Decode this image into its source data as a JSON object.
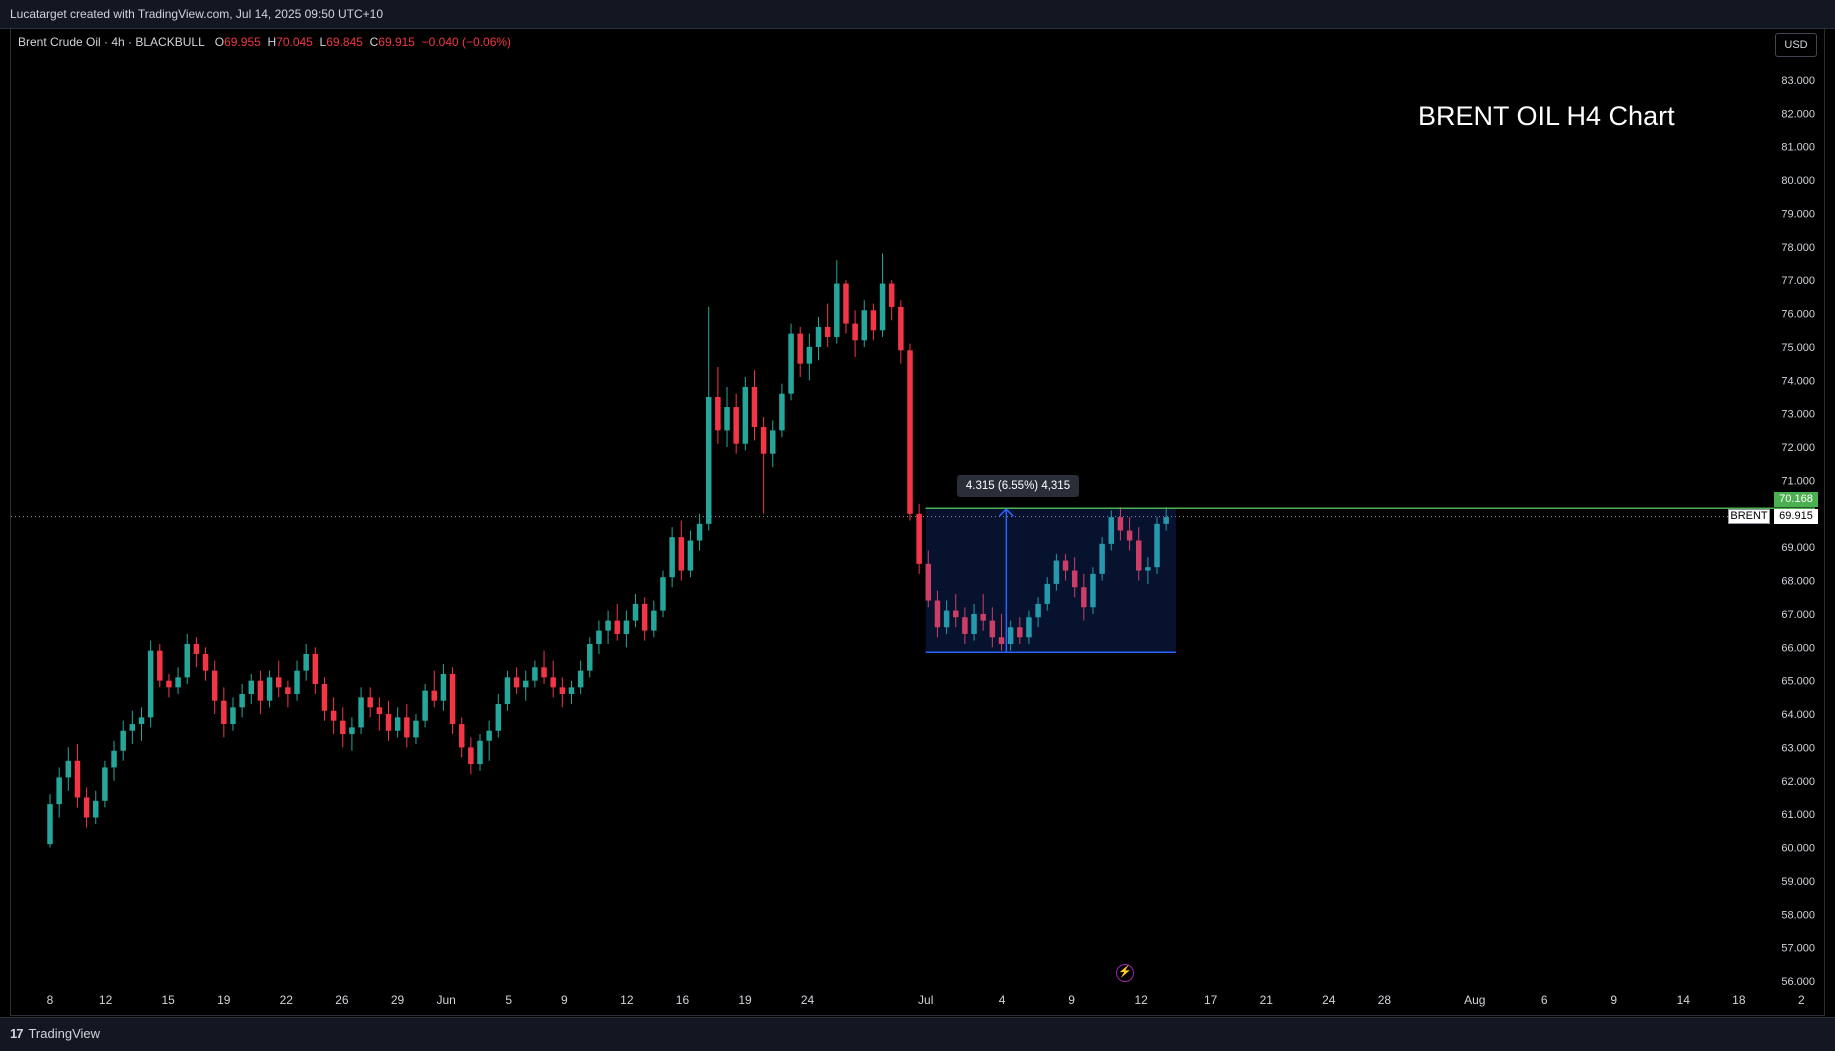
{
  "header": {
    "credit": "Lucatarget created with TradingView.com, Jul 14, 2025 09:50 UTC+10"
  },
  "legend": {
    "symbol": "Brent Crude Oil · 4h · BLACKBULL",
    "open_label": "O",
    "open": "69.955",
    "high_label": "H",
    "high": "70.045",
    "low_label": "L",
    "low": "69.845",
    "close_label": "C",
    "close": "69.915",
    "change": "−0.040 (−0.06%)"
  },
  "currency_button": "USD",
  "annotation_title": "BRENT OIL H4 Chart",
  "measure_label": "4.315 (6.55%) 4,315",
  "price_tags": {
    "resistance": "70.168",
    "symbol": "BRENT",
    "last": "69.915"
  },
  "footer": {
    "brand": "TradingView",
    "logo_mark": "17"
  },
  "colors": {
    "up": "#26a69a",
    "down": "#f23645",
    "measure": "#2962ff",
    "resistance": "#4caf50"
  },
  "chart_data": {
    "type": "candlestick",
    "y_ticks": [
      "83.000",
      "82.000",
      "81.000",
      "80.000",
      "79.000",
      "78.000",
      "77.000",
      "76.000",
      "75.000",
      "74.000",
      "73.000",
      "72.000",
      "71.000",
      "70.000",
      "69.000",
      "68.000",
      "67.000",
      "66.000",
      "65.000",
      "64.000",
      "63.000",
      "62.000",
      "61.000",
      "60.000",
      "59.000",
      "58.000",
      "57.000",
      "56.000"
    ],
    "ylim": [
      55.5,
      83.5
    ],
    "x_ticks": [
      "8",
      "12",
      "15",
      "19",
      "22",
      "26",
      "29",
      "Jun",
      "5",
      "9",
      "12",
      "16",
      "19",
      "24",
      "Jul",
      "4",
      "9",
      "12",
      "17",
      "21",
      "24",
      "28",
      "Aug",
      "6",
      "9",
      "14",
      "18",
      "2"
    ],
    "x_tick_positions": [
      0.0,
      4.0,
      8.5,
      12.5,
      17.0,
      21.0,
      25.0,
      28.5,
      33.0,
      37.0,
      41.5,
      45.5,
      50.0,
      54.5,
      63.0,
      68.5,
      73.5,
      78.5,
      83.5,
      87.5,
      92.0,
      96.0,
      102.5,
      107.5,
      112.5,
      117.5,
      121.5,
      126.0
    ],
    "x_units": "trading days after the first date label (8)",
    "series": [
      {
        "values": [
          {
            "o": 60.1,
            "h": 61.6,
            "l": 60.0,
            "c": 61.3
          },
          {
            "o": 61.3,
            "h": 62.4,
            "l": 60.9,
            "c": 62.1
          },
          {
            "o": 62.1,
            "h": 63.0,
            "l": 61.7,
            "c": 62.6
          },
          {
            "o": 62.6,
            "h": 63.1,
            "l": 61.2,
            "c": 61.5
          },
          {
            "o": 61.5,
            "h": 61.8,
            "l": 60.6,
            "c": 60.9
          },
          {
            "o": 60.9,
            "h": 61.7,
            "l": 60.7,
            "c": 61.4
          },
          {
            "o": 61.4,
            "h": 62.6,
            "l": 61.2,
            "c": 62.4
          },
          {
            "o": 62.4,
            "h": 63.2,
            "l": 62.0,
            "c": 62.9
          },
          {
            "o": 62.9,
            "h": 63.8,
            "l": 62.6,
            "c": 63.5
          },
          {
            "o": 63.5,
            "h": 64.1,
            "l": 63.1,
            "c": 63.7
          },
          {
            "o": 63.7,
            "h": 64.2,
            "l": 63.2,
            "c": 63.9
          },
          {
            "o": 63.9,
            "h": 66.2,
            "l": 63.6,
            "c": 65.9
          },
          {
            "o": 65.9,
            "h": 66.1,
            "l": 64.8,
            "c": 65.0
          },
          {
            "o": 65.0,
            "h": 65.2,
            "l": 64.5,
            "c": 64.8
          },
          {
            "o": 64.8,
            "h": 65.4,
            "l": 64.6,
            "c": 65.1
          },
          {
            "o": 65.1,
            "h": 66.4,
            "l": 64.9,
            "c": 66.1
          },
          {
            "o": 66.1,
            "h": 66.3,
            "l": 65.4,
            "c": 65.8
          },
          {
            "o": 65.8,
            "h": 66.0,
            "l": 65.0,
            "c": 65.3
          },
          {
            "o": 65.3,
            "h": 65.6,
            "l": 64.0,
            "c": 64.4
          },
          {
            "o": 64.4,
            "h": 64.8,
            "l": 63.3,
            "c": 63.7
          },
          {
            "o": 63.7,
            "h": 64.5,
            "l": 63.5,
            "c": 64.2
          },
          {
            "o": 64.2,
            "h": 64.9,
            "l": 63.9,
            "c": 64.6
          },
          {
            "o": 64.6,
            "h": 65.2,
            "l": 64.3,
            "c": 65.0
          },
          {
            "o": 65.0,
            "h": 65.3,
            "l": 64.0,
            "c": 64.4
          },
          {
            "o": 64.4,
            "h": 65.3,
            "l": 64.2,
            "c": 65.1
          },
          {
            "o": 65.1,
            "h": 65.6,
            "l": 64.5,
            "c": 64.8
          },
          {
            "o": 64.8,
            "h": 65.0,
            "l": 64.2,
            "c": 64.6
          },
          {
            "o": 64.6,
            "h": 65.6,
            "l": 64.4,
            "c": 65.3
          },
          {
            "o": 65.3,
            "h": 66.1,
            "l": 65.0,
            "c": 65.8
          },
          {
            "o": 65.8,
            "h": 66.0,
            "l": 64.6,
            "c": 64.9
          },
          {
            "o": 64.9,
            "h": 65.1,
            "l": 63.8,
            "c": 64.1
          },
          {
            "o": 64.1,
            "h": 64.5,
            "l": 63.4,
            "c": 63.8
          },
          {
            "o": 63.8,
            "h": 64.2,
            "l": 63.0,
            "c": 63.4
          },
          {
            "o": 63.4,
            "h": 63.9,
            "l": 62.9,
            "c": 63.6
          },
          {
            "o": 63.6,
            "h": 64.8,
            "l": 63.4,
            "c": 64.5
          },
          {
            "o": 64.5,
            "h": 64.8,
            "l": 63.9,
            "c": 64.2
          },
          {
            "o": 64.2,
            "h": 64.5,
            "l": 63.5,
            "c": 64.0
          },
          {
            "o": 64.0,
            "h": 64.4,
            "l": 63.2,
            "c": 63.5
          },
          {
            "o": 63.5,
            "h": 64.2,
            "l": 63.3,
            "c": 63.9
          },
          {
            "o": 63.9,
            "h": 64.3,
            "l": 63.0,
            "c": 63.3
          },
          {
            "o": 63.3,
            "h": 64.0,
            "l": 63.1,
            "c": 63.8
          },
          {
            "o": 63.8,
            "h": 64.9,
            "l": 63.6,
            "c": 64.7
          },
          {
            "o": 64.7,
            "h": 65.3,
            "l": 64.2,
            "c": 64.4
          },
          {
            "o": 64.4,
            "h": 65.5,
            "l": 64.1,
            "c": 65.2
          },
          {
            "o": 65.2,
            "h": 65.4,
            "l": 63.4,
            "c": 63.7
          },
          {
            "o": 63.7,
            "h": 63.9,
            "l": 62.7,
            "c": 63.0
          },
          {
            "o": 63.0,
            "h": 63.3,
            "l": 62.2,
            "c": 62.5
          },
          {
            "o": 62.5,
            "h": 63.4,
            "l": 62.3,
            "c": 63.2
          },
          {
            "o": 63.2,
            "h": 63.8,
            "l": 62.6,
            "c": 63.5
          },
          {
            "o": 63.5,
            "h": 64.6,
            "l": 63.3,
            "c": 64.3
          },
          {
            "o": 64.3,
            "h": 65.3,
            "l": 64.1,
            "c": 65.1
          },
          {
            "o": 65.1,
            "h": 65.4,
            "l": 64.6,
            "c": 64.8
          },
          {
            "o": 64.8,
            "h": 65.3,
            "l": 64.4,
            "c": 65.0
          },
          {
            "o": 65.0,
            "h": 65.6,
            "l": 64.8,
            "c": 65.4
          },
          {
            "o": 65.4,
            "h": 65.9,
            "l": 64.9,
            "c": 65.1
          },
          {
            "o": 65.1,
            "h": 65.6,
            "l": 64.5,
            "c": 64.8
          },
          {
            "o": 64.8,
            "h": 65.1,
            "l": 64.2,
            "c": 64.6
          },
          {
            "o": 64.6,
            "h": 65.0,
            "l": 64.3,
            "c": 64.8
          },
          {
            "o": 64.8,
            "h": 65.6,
            "l": 64.6,
            "c": 65.3
          },
          {
            "o": 65.3,
            "h": 66.3,
            "l": 65.1,
            "c": 66.1
          },
          {
            "o": 66.1,
            "h": 66.8,
            "l": 65.8,
            "c": 66.5
          },
          {
            "o": 66.5,
            "h": 67.1,
            "l": 66.1,
            "c": 66.8
          },
          {
            "o": 66.8,
            "h": 67.3,
            "l": 66.2,
            "c": 66.4
          },
          {
            "o": 66.4,
            "h": 67.1,
            "l": 66.0,
            "c": 66.8
          },
          {
            "o": 66.8,
            "h": 67.6,
            "l": 66.6,
            "c": 67.3
          },
          {
            "o": 67.3,
            "h": 67.5,
            "l": 66.2,
            "c": 66.5
          },
          {
            "o": 66.5,
            "h": 67.4,
            "l": 66.3,
            "c": 67.1
          },
          {
            "o": 67.1,
            "h": 68.3,
            "l": 66.9,
            "c": 68.1
          },
          {
            "o": 68.1,
            "h": 69.6,
            "l": 67.8,
            "c": 69.3
          },
          {
            "o": 69.3,
            "h": 69.8,
            "l": 68.0,
            "c": 68.3
          },
          {
            "o": 68.3,
            "h": 69.5,
            "l": 68.1,
            "c": 69.2
          },
          {
            "o": 69.2,
            "h": 70.0,
            "l": 68.9,
            "c": 69.7
          },
          {
            "o": 69.7,
            "h": 76.2,
            "l": 69.5,
            "c": 73.5
          },
          {
            "o": 73.5,
            "h": 74.4,
            "l": 72.1,
            "c": 72.5
          },
          {
            "o": 72.5,
            "h": 73.8,
            "l": 72.0,
            "c": 73.2
          },
          {
            "o": 73.2,
            "h": 73.6,
            "l": 71.8,
            "c": 72.1
          },
          {
            "o": 72.1,
            "h": 74.1,
            "l": 71.9,
            "c": 73.8
          },
          {
            "o": 73.8,
            "h": 74.3,
            "l": 72.2,
            "c": 72.6
          },
          {
            "o": 72.6,
            "h": 72.9,
            "l": 70.0,
            "c": 71.8
          },
          {
            "o": 71.8,
            "h": 72.8,
            "l": 71.4,
            "c": 72.5
          },
          {
            "o": 72.5,
            "h": 73.9,
            "l": 72.3,
            "c": 73.6
          },
          {
            "o": 73.6,
            "h": 75.7,
            "l": 73.4,
            "c": 75.4
          },
          {
            "o": 75.4,
            "h": 75.6,
            "l": 74.1,
            "c": 74.5
          },
          {
            "o": 74.5,
            "h": 75.4,
            "l": 74.0,
            "c": 75.0
          },
          {
            "o": 75.0,
            "h": 75.9,
            "l": 74.6,
            "c": 75.6
          },
          {
            "o": 75.6,
            "h": 76.3,
            "l": 75.0,
            "c": 75.3
          },
          {
            "o": 75.3,
            "h": 77.6,
            "l": 75.1,
            "c": 76.9
          },
          {
            "o": 76.9,
            "h": 77.0,
            "l": 75.4,
            "c": 75.7
          },
          {
            "o": 75.7,
            "h": 76.1,
            "l": 74.7,
            "c": 75.2
          },
          {
            "o": 75.2,
            "h": 76.4,
            "l": 75.0,
            "c": 76.1
          },
          {
            "o": 76.1,
            "h": 76.3,
            "l": 75.2,
            "c": 75.5
          },
          {
            "o": 75.5,
            "h": 77.8,
            "l": 75.3,
            "c": 76.9
          },
          {
            "o": 76.9,
            "h": 77.0,
            "l": 75.8,
            "c": 76.2
          },
          {
            "o": 76.2,
            "h": 76.4,
            "l": 74.5,
            "c": 74.9
          },
          {
            "o": 74.9,
            "h": 75.1,
            "l": 69.8,
            "c": 70.0
          },
          {
            "o": 70.0,
            "h": 70.3,
            "l": 68.2,
            "c": 68.5
          },
          {
            "o": 68.5,
            "h": 68.9,
            "l": 67.2,
            "c": 67.4
          },
          {
            "o": 67.4,
            "h": 67.7,
            "l": 66.3,
            "c": 66.6
          },
          {
            "o": 66.6,
            "h": 67.4,
            "l": 66.4,
            "c": 67.1
          },
          {
            "o": 67.1,
            "h": 67.6,
            "l": 66.6,
            "c": 66.9
          },
          {
            "o": 66.9,
            "h": 67.2,
            "l": 66.1,
            "c": 66.4
          },
          {
            "o": 66.4,
            "h": 67.3,
            "l": 66.2,
            "c": 67.0
          },
          {
            "o": 67.0,
            "h": 67.6,
            "l": 66.5,
            "c": 66.8
          },
          {
            "o": 66.8,
            "h": 67.2,
            "l": 66.0,
            "c": 66.3
          },
          {
            "o": 66.3,
            "h": 67.0,
            "l": 65.9,
            "c": 66.1
          },
          {
            "o": 66.1,
            "h": 66.8,
            "l": 65.9,
            "c": 66.6
          },
          {
            "o": 66.6,
            "h": 66.9,
            "l": 66.1,
            "c": 66.3
          },
          {
            "o": 66.3,
            "h": 67.1,
            "l": 66.1,
            "c": 66.9
          },
          {
            "o": 66.9,
            "h": 67.5,
            "l": 66.6,
            "c": 67.3
          },
          {
            "o": 67.3,
            "h": 68.1,
            "l": 67.1,
            "c": 67.9
          },
          {
            "o": 67.9,
            "h": 68.8,
            "l": 67.7,
            "c": 68.6
          },
          {
            "o": 68.6,
            "h": 68.8,
            "l": 68.0,
            "c": 68.3
          },
          {
            "o": 68.3,
            "h": 68.7,
            "l": 67.5,
            "c": 67.8
          },
          {
            "o": 67.8,
            "h": 68.2,
            "l": 66.8,
            "c": 67.2
          },
          {
            "o": 67.2,
            "h": 68.4,
            "l": 67.0,
            "c": 68.2
          },
          {
            "o": 68.2,
            "h": 69.3,
            "l": 68.0,
            "c": 69.1
          },
          {
            "o": 69.1,
            "h": 70.1,
            "l": 68.9,
            "c": 69.9
          },
          {
            "o": 69.9,
            "h": 70.2,
            "l": 69.2,
            "c": 69.5
          },
          {
            "o": 69.5,
            "h": 69.9,
            "l": 68.9,
            "c": 69.2
          },
          {
            "o": 69.2,
            "h": 69.6,
            "l": 68.0,
            "c": 68.3
          },
          {
            "o": 68.3,
            "h": 68.7,
            "l": 67.9,
            "c": 68.4
          },
          {
            "o": 68.4,
            "h": 69.9,
            "l": 68.2,
            "c": 69.7
          },
          {
            "o": 69.7,
            "h": 70.2,
            "l": 69.5,
            "c": 69.9
          }
        ]
      }
    ],
    "horizontal_line": {
      "price": 70.168,
      "label": "70.168"
    },
    "measure_box": {
      "from_price": 65.853,
      "to_price": 70.168,
      "start_x": 63.0,
      "end_x": 81.0,
      "arrow_x": 68.8
    },
    "last_price": 69.915
  }
}
